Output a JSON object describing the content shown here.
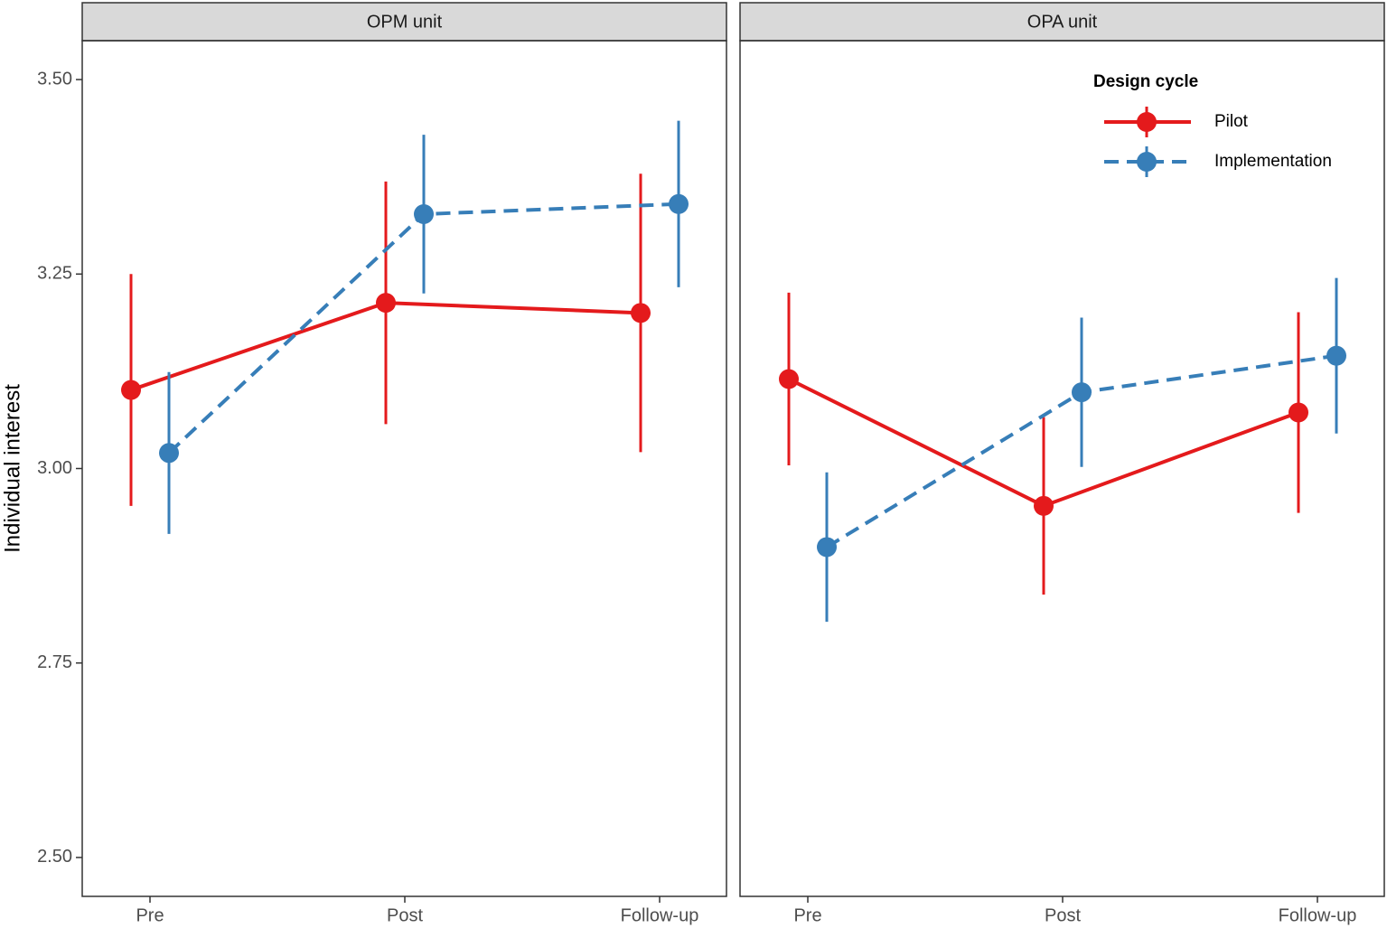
{
  "chart_data": [
    {
      "type": "line",
      "title": "OPM unit",
      "ylabel": "Individual interest",
      "categories": [
        "Pre",
        "Post",
        "Follow-up"
      ],
      "ylim": [
        2.45,
        3.55
      ],
      "yticks": [
        {
          "value": 2.5,
          "label": "2.50"
        },
        2.75,
        {
          "value": 3.0,
          "label": "3.00"
        },
        3.25,
        {
          "value": 3.5,
          "label": "3.50"
        }
      ],
      "series": [
        {
          "color": "#e41a1c",
          "dashed": false,
          "values": [
            3.101,
            3.213,
            3.2
          ],
          "errors": [
            0.149,
            0.156,
            0.179
          ]
        },
        {
          "color": "#377eb8",
          "dashed": true,
          "values": [
            3.02,
            3.327,
            3.34
          ],
          "errors": [
            0.104,
            0.102,
            0.107
          ]
        }
      ]
    },
    {
      "type": "line",
      "title": "OPA unit",
      "categories": [
        "Pre",
        "Post",
        "Follow-up"
      ],
      "ylim": [
        2.45,
        3.55
      ],
      "legend_title": "Design cycle",
      "series": [
        {
          "name": "Pilot",
          "color": "#e41a1c",
          "dashed": false,
          "values": [
            3.115,
            2.952,
            3.072
          ],
          "errors": [
            0.111,
            0.114,
            0.129
          ]
        },
        {
          "name": "Implementation",
          "color": "#377eb8",
          "dashed": true,
          "values": [
            2.899,
            3.098,
            3.145
          ],
          "errors": [
            0.096,
            0.096,
            0.1
          ]
        }
      ]
    }
  ]
}
